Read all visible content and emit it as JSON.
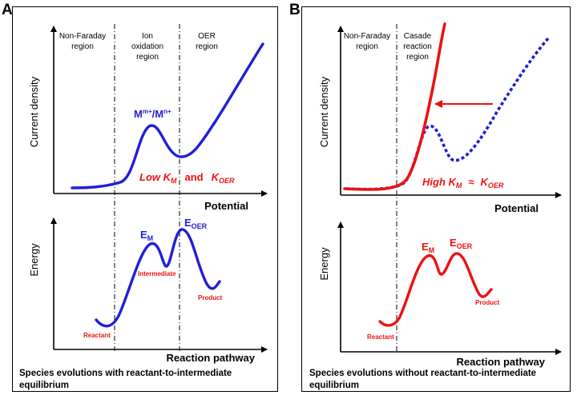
{
  "panel_a": {
    "letter": "A",
    "regions": [
      {
        "line1": "Non-Faraday",
        "line2": "region",
        "line3": ""
      },
      {
        "line1": "Ion",
        "line2": "oxidation",
        "line3": "region"
      },
      {
        "line1": "OER",
        "line2": "region",
        "line3": ""
      }
    ],
    "top_ylabel": "Current density",
    "top_xlabel": "Potential",
    "redox_label_base": "M",
    "redox_sup_1": "m+",
    "redox_sep": "/M",
    "redox_sup_2": "n+",
    "rate_text_1": "Low K",
    "rate_sub_1": "M",
    "rate_and": "and",
    "rate_text_2": "K",
    "rate_sub_2": "OER",
    "bottom_ylabel": "Energy",
    "bottom_xlabel": "Reaction pathway",
    "em_base": "E",
    "em_sub": "M",
    "eoer_base": "E",
    "eoer_sub": "OER",
    "reactant": "Reactant",
    "intermediate": "Intermediate",
    "product": "Product",
    "caption_line1": "Species evolutions with reactant-to-intermediate",
    "caption_line2": "equilibrium"
  },
  "panel_b": {
    "letter": "B",
    "regions": [
      {
        "line1": "Non-Faraday",
        "line2": "region",
        "line3": ""
      },
      {
        "line1": "Casade",
        "line2": "reaction",
        "line3": "region"
      }
    ],
    "top_ylabel": "Current density",
    "top_xlabel": "Potential",
    "rate_text_1": "High K",
    "rate_sub_1": "M",
    "rate_approx": "≈",
    "rate_text_2": "K",
    "rate_sub_2": "OER",
    "bottom_ylabel": "Energy",
    "bottom_xlabel": "Reaction pathway",
    "em_base": "E",
    "em_sub": "M",
    "eoer_base": "E",
    "eoer_sub": "OER",
    "reactant": "Reactant",
    "product": "Product",
    "caption_line1": "Species evolutions without reactant-to-intermediate",
    "caption_line2": "equilibrium"
  },
  "colors": {
    "blue": "#1f1fd6",
    "red": "#ee1111",
    "axis": "#000000"
  }
}
